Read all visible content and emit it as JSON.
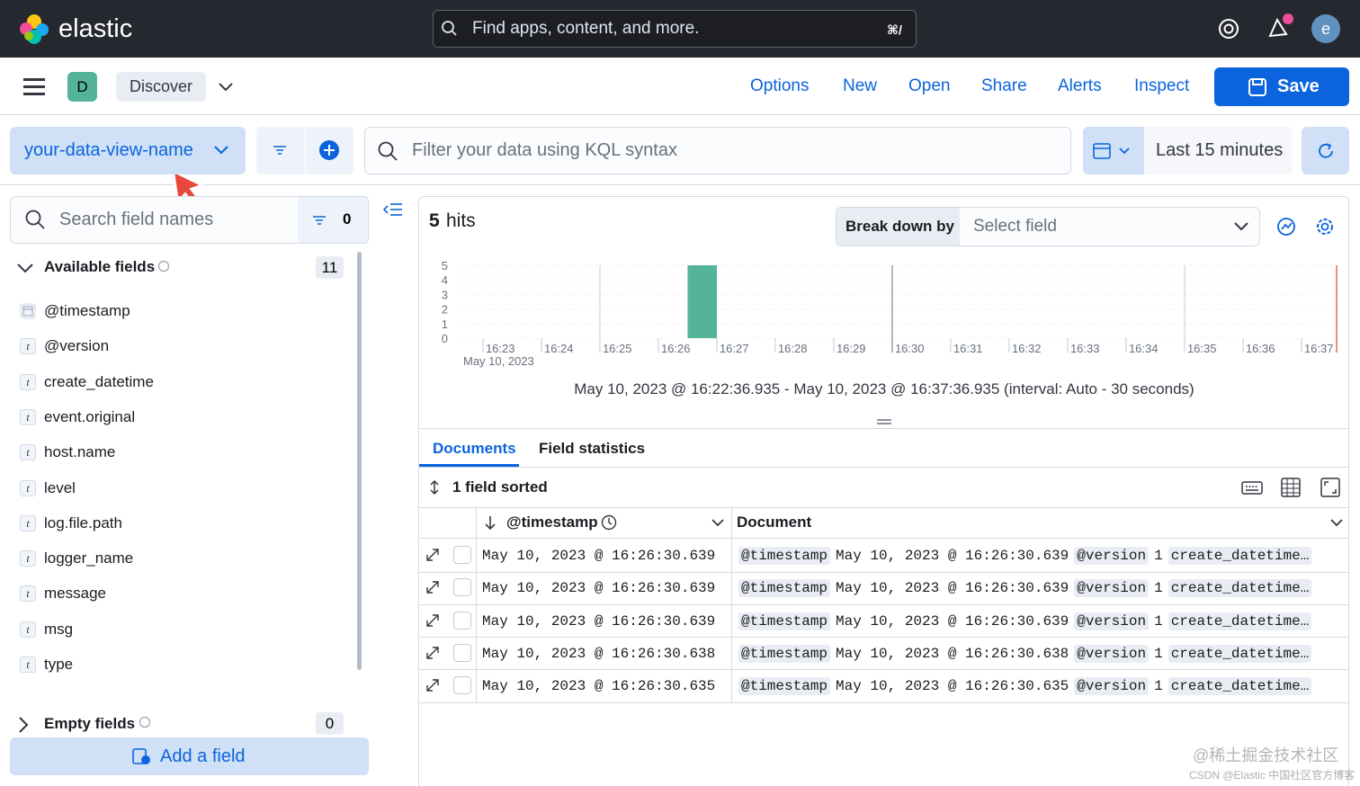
{
  "header": {
    "brand": "elastic",
    "search_placeholder": "Find apps, content, and more.",
    "shortcut": "⌘/",
    "avatar": "e"
  },
  "toolbar": {
    "space": "D",
    "app": "Discover",
    "menu": [
      "Options",
      "New",
      "Open",
      "Share",
      "Alerts",
      "Inspect"
    ],
    "save": "Save"
  },
  "query_bar": {
    "data_view": "your-data-view-name",
    "placeholder": "Filter your data using KQL syntax",
    "time_range": "Last 15 minutes"
  },
  "sidebar": {
    "search_placeholder": "Search field names",
    "filter_count": 0,
    "available_label": "Available fields",
    "available_count": 11,
    "fields": [
      {
        "name": "@timestamp"
      },
      {
        "icon": "t",
        "name": "@version"
      },
      {
        "icon": "t",
        "name": "create_datetime"
      },
      {
        "icon": "t",
        "name": "event.original"
      },
      {
        "icon": "t",
        "name": "host.name"
      },
      {
        "icon": "t",
        "name": "level"
      },
      {
        "icon": "t",
        "name": "log.file.path"
      },
      {
        "icon": "t",
        "name": "logger_name"
      },
      {
        "icon": "t",
        "name": "message"
      },
      {
        "icon": "t",
        "name": "msg"
      },
      {
        "icon": "t",
        "name": "type"
      }
    ],
    "empty_label": "Empty fields",
    "empty_count": 0,
    "add_field": "Add a field"
  },
  "results": {
    "hits_count": 5,
    "hits_label": "hits",
    "breakdown_label": "Break down by",
    "breakdown_placeholder": "Select field"
  },
  "histogram": {
    "type": "histogram",
    "bins": [
      26.5,
      27
    ],
    "values": [
      5
    ],
    "color": "#54b399",
    "xlim": [
      22.616,
      37.616
    ],
    "ylim": [
      0,
      5
    ],
    "yticks": [
      0,
      1,
      2,
      3,
      4,
      5
    ],
    "xticks": [
      {
        "value": 23,
        "label": "16:23"
      },
      {
        "value": 24,
        "label": "16:24"
      },
      {
        "value": 25,
        "label": "16:25"
      },
      {
        "value": 26,
        "label": "16:26"
      },
      {
        "value": 27,
        "label": "16:27"
      },
      {
        "value": 28,
        "label": "16:28"
      },
      {
        "value": 29,
        "label": "16:29"
      },
      {
        "value": 30,
        "label": "16:30"
      },
      {
        "value": 31,
        "label": "16:31"
      },
      {
        "value": 32,
        "label": "16:32"
      },
      {
        "value": 33,
        "label": "16:33"
      },
      {
        "value": 34,
        "label": "16:34"
      },
      {
        "value": 35,
        "label": "16:35"
      },
      {
        "value": 36,
        "label": "16:36"
      },
      {
        "value": 37,
        "label": "16:37"
      }
    ],
    "x_date": "May 10, 2023",
    "caption": "May 10, 2023 @ 16:22:36.935 - May 10, 2023 @ 16:37:36.935 (interval: Auto - 30 seconds)"
  },
  "tabs": [
    "Documents",
    "Field statistics"
  ],
  "table": {
    "sort_label": "1 field sorted",
    "columns": [
      "@timestamp",
      "Document"
    ],
    "rows": [
      {
        "timestamp": "May 10, 2023 @ 16:26:30.639",
        "document": [
          "@timestamp",
          "May 10, 2023 @ 16:26:30.639",
          "@version",
          "1",
          "create_datetime…"
        ]
      },
      {
        "timestamp": "May 10, 2023 @ 16:26:30.639",
        "document": [
          "@timestamp",
          "May 10, 2023 @ 16:26:30.639",
          "@version",
          "1",
          "create_datetime…"
        ]
      },
      {
        "timestamp": "May 10, 2023 @ 16:26:30.639",
        "document": [
          "@timestamp",
          "May 10, 2023 @ 16:26:30.639",
          "@version",
          "1",
          "create_datetime…"
        ]
      },
      {
        "timestamp": "May 10, 2023 @ 16:26:30.638",
        "document": [
          "@timestamp",
          "May 10, 2023 @ 16:26:30.638",
          "@version",
          "1",
          "create_datetime…"
        ]
      },
      {
        "timestamp": "May 10, 2023 @ 16:26:30.635",
        "document": [
          "@timestamp",
          "May 10, 2023 @ 16:26:30.635",
          "@version",
          "1",
          "create_datetime…"
        ]
      }
    ]
  },
  "watermark": [
    "@稀土掘金技术社区",
    "CSDN @Elastic 中国社区官方博客"
  ]
}
